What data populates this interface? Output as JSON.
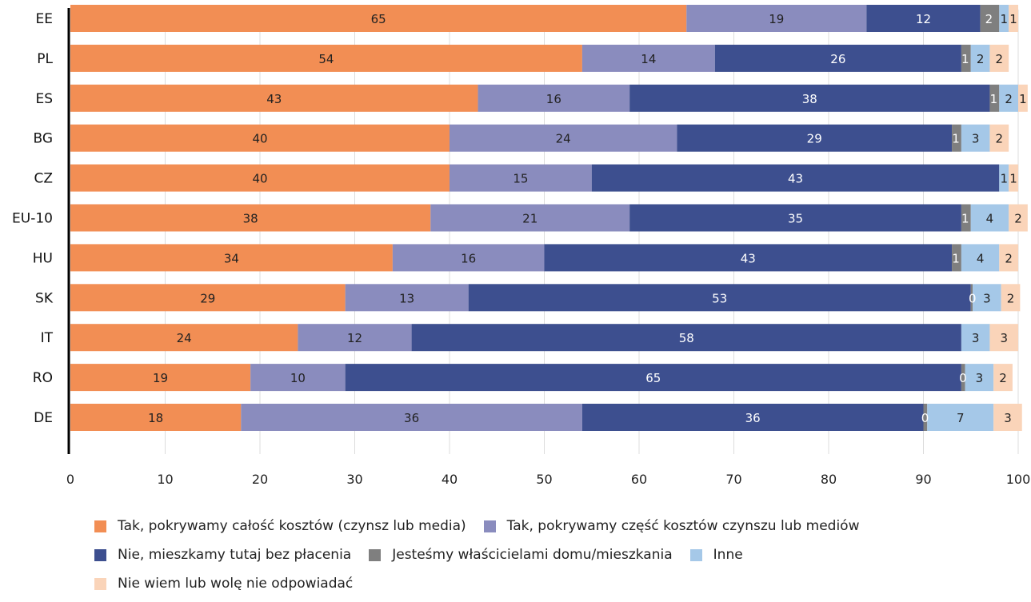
{
  "chart_data": {
    "type": "bar",
    "orientation": "horizontal",
    "stacked": true,
    "categories": [
      "EE",
      "PL",
      "ES",
      "BG",
      "CZ",
      "EU-10",
      "HU",
      "SK",
      "IT",
      "RO",
      "DE"
    ],
    "series": [
      {
        "name": "Tak, pokrywamy całość kosztów (czynsz lub media)",
        "color": "#f28e54",
        "values": [
          65,
          54,
          43,
          40,
          40,
          38,
          34,
          29,
          24,
          19,
          18
        ],
        "labels": [
          "65",
          "54",
          "43",
          "40",
          "40",
          "38",
          "34",
          "29",
          "24",
          "19",
          "18"
        ]
      },
      {
        "name": "Tak, pokrywamy część kosztów czynszu lub mediów",
        "color": "#8a8cbe",
        "values": [
          19,
          14,
          16,
          24,
          15,
          21,
          16,
          13,
          12,
          10,
          36
        ],
        "labels": [
          "19",
          "14",
          "16",
          "24",
          "15",
          "21",
          "16",
          "13",
          "12",
          "10",
          "36"
        ]
      },
      {
        "name": "Nie, mieszkamy tutaj bez płacenia",
        "color": "#3d4f8f",
        "values": [
          12,
          26,
          38,
          29,
          43,
          35,
          43,
          53,
          58,
          65,
          36
        ],
        "labels": [
          "12",
          "26",
          "38",
          "29",
          "43",
          "35",
          "43",
          "53",
          "58",
          "65",
          "36"
        ]
      },
      {
        "name": "Jesteśmy właścicielami domu/mieszkania",
        "color": "#7f7f7f",
        "values": [
          2,
          1,
          1,
          1,
          0,
          1,
          1,
          0.2,
          0,
          0.4,
          0.4
        ],
        "labels": [
          "2",
          "1",
          "1",
          "1",
          "",
          "1",
          "1",
          "0",
          "",
          "0",
          "0"
        ]
      },
      {
        "name": "Inne",
        "color": "#a5c8e8",
        "values": [
          1,
          2,
          2,
          3,
          1,
          4,
          4,
          3,
          3,
          3,
          7
        ],
        "labels": [
          "1",
          "2",
          "2",
          "3",
          "1",
          "4",
          "4",
          "3",
          "3",
          "3",
          "7"
        ]
      },
      {
        "name": "Nie wiem lub wolę nie odpowiadać",
        "color": "#fad4b9",
        "values": [
          1,
          2,
          1,
          2,
          1,
          2,
          2,
          2,
          3,
          2,
          3
        ],
        "labels": [
          "1",
          "2",
          "1",
          "2",
          "1",
          "2",
          "2",
          "2",
          "3",
          "2",
          "3"
        ]
      }
    ],
    "xlim": [
      0,
      100
    ],
    "xticks": [
      "0",
      "10",
      "20",
      "30",
      "40",
      "50",
      "60",
      "70",
      "80",
      "90",
      "100"
    ],
    "grid": true,
    "legend_position": "bottom"
  }
}
